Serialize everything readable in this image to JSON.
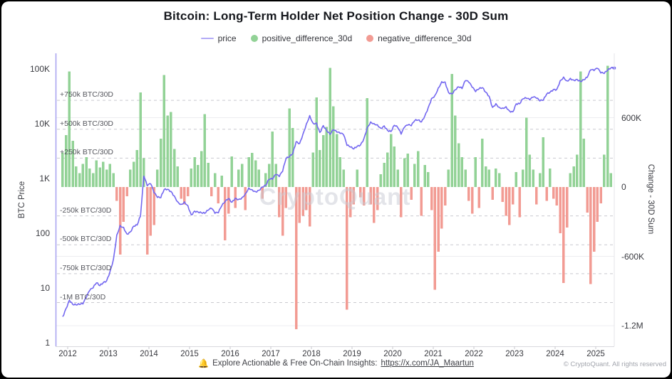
{
  "page": {
    "background": "#000000",
    "card_background": "#ffffff"
  },
  "header": {
    "title": "Bitcoin: Long-Term Holder Net Position Change - 30D Sum"
  },
  "legend": [
    {
      "label": "price",
      "type": "line",
      "color": "#b3abf7"
    },
    {
      "label": "positive_difference_30d",
      "type": "dot",
      "color": "#92d296"
    },
    {
      "label": "negative_difference_30d",
      "type": "dot",
      "color": "#f29b93"
    }
  ],
  "watermark": "CryptoQuant",
  "footer": {
    "bell_icon": "🔔",
    "text": "Explore Actionable & Free On-Chain Insights:",
    "link": "https://x.com/JA_Maartun",
    "copyright": "© CryptoQuant. All rights reserved"
  },
  "chart_data": {
    "type": "combo",
    "title": "Bitcoin: Long-Term Holder Net Position Change - 30D Sum",
    "subtitle": "",
    "grid": "dashed-guides-plus-light-solid-lines",
    "legend_position": "top-center",
    "colors": {
      "price_line": "#7367f0",
      "positive_bar": "#92d296",
      "negative_bar": "#f29b93",
      "axis_line": "#a6a0f0"
    },
    "left_axis": {
      "label": "BTC Price",
      "scale": "log",
      "ticks": [
        "100K",
        "10K",
        "1K",
        "100",
        "10",
        "1"
      ],
      "tick_values": [
        100000,
        10000,
        1000,
        100,
        10,
        1
      ]
    },
    "right_axis": {
      "label": "Change - 30D Sum",
      "scale": "linear",
      "ticks": [
        "600K",
        "0",
        "-600K",
        "-1.2M"
      ],
      "tick_values_k_btc": [
        600,
        0,
        -600,
        -1200
      ]
    },
    "x_axis": {
      "ticks": [
        "2012",
        "2013",
        "2014",
        "2015",
        "2016",
        "2017",
        "2018",
        "2019",
        "2020",
        "2021",
        "2022",
        "2023",
        "2024",
        "2025"
      ],
      "range": [
        "2011-11",
        "2025-06"
      ]
    },
    "guides": [
      {
        "label": "+750k BTC/30D",
        "value_k_btc": 750
      },
      {
        "label": "+500k BTC/30D",
        "value_k_btc": 500
      },
      {
        "label": "+250k BTC/30D",
        "value_k_btc": 250
      },
      {
        "label": "-250k BTC/30D",
        "value_k_btc": -250
      },
      {
        "label": "-500k BTC/30D",
        "value_k_btc": -500
      },
      {
        "label": "-750k BTC/30D",
        "value_k_btc": -750
      },
      {
        "label": "-1M BTC/30D",
        "value_k_btc": -1000
      }
    ],
    "series": {
      "resolution": "monthly",
      "start_month": "2011-11",
      "price_usd": [
        3.0,
        4.2,
        6.0,
        5.0,
        4.9,
        5.0,
        5.1,
        6.7,
        9.0,
        10.0,
        12.4,
        11.0,
        12.5,
        13.5,
        20,
        33,
        93,
        139,
        128,
        97,
        106,
        135,
        141,
        204,
        1100,
        732,
        800,
        550,
        450,
        445,
        630,
        635,
        580,
        480,
        375,
        338,
        375,
        320,
        217,
        254,
        244,
        236,
        230,
        263,
        284,
        230,
        236,
        314,
        377,
        430,
        368,
        437,
        416,
        448,
        531,
        673,
        624,
        575,
        610,
        700,
        745,
        963,
        970,
        1180,
        1080,
        1350,
        2300,
        2480,
        2870,
        4700,
        4360,
        6450,
        9900,
        14100,
        10200,
        10300,
        6930,
        9240,
        7490,
        6400,
        7730,
        7030,
        6630,
        6300,
        4020,
        3740,
        3460,
        3850,
        4100,
        5320,
        8560,
        10800,
        10100,
        9590,
        8290,
        9150,
        7560,
        7190,
        9350,
        8540,
        6440,
        8620,
        9450,
        9140,
        11350,
        11650,
        10780,
        13800,
        19700,
        28990,
        33100,
        45200,
        58800,
        57800,
        37300,
        35000,
        41600,
        47100,
        43800,
        61300,
        57000,
        46200,
        38500,
        43200,
        45500,
        37700,
        31800,
        19900,
        23300,
        20000,
        19400,
        20500,
        17200,
        16500,
        23100,
        23100,
        28500,
        29200,
        27200,
        30500,
        29200,
        26000,
        26900,
        34700,
        37700,
        42300,
        42600,
        61200,
        71300,
        60600,
        67500,
        62700,
        64600,
        59000,
        63300,
        70200,
        96400,
        93400,
        102400,
        84400,
        82500,
        94200,
        104600,
        104000
      ],
      "net_position_change_k_btc": [
        300,
        450,
        1000,
        400,
        180,
        120,
        200,
        260,
        160,
        120,
        230,
        170,
        220,
        150,
        200,
        120,
        -120,
        -585,
        -300,
        -80,
        150,
        220,
        320,
        820,
        250,
        -585,
        -420,
        -330,
        150,
        420,
        970,
        620,
        650,
        330,
        180,
        -100,
        -150,
        -80,
        160,
        260,
        190,
        310,
        630,
        210,
        -80,
        120,
        -140,
        100,
        -460,
        -230,
        265,
        -180,
        150,
        200,
        -200,
        260,
        295,
        230,
        150,
        -100,
        120,
        200,
        480,
        200,
        -260,
        -420,
        -180,
        680,
        510,
        -1230,
        -310,
        -250,
        -200,
        -340,
        300,
        775,
        320,
        450,
        520,
        1030,
        700,
        460,
        260,
        150,
        -1060,
        -260,
        -150,
        150,
        -90,
        -160,
        770,
        -150,
        -310,
        -200,
        110,
        210,
        300,
        460,
        350,
        150,
        -260,
        250,
        290,
        -110,
        200,
        310,
        -250,
        190,
        130,
        -200,
        -890,
        -560,
        -360,
        -160,
        150,
        980,
        620,
        380,
        260,
        150,
        -120,
        -230,
        260,
        -180,
        420,
        180,
        150,
        -110,
        160,
        120,
        -130,
        -250,
        -330,
        -150,
        130,
        -260,
        150,
        600,
        280,
        150,
        -150,
        120,
        430,
        -120,
        160,
        -100,
        -160,
        -400,
        -830,
        -350,
        120,
        180,
        280,
        1000,
        420,
        -220,
        -840,
        -560,
        -300,
        -140,
        280,
        1050,
        120,
        0
      ]
    }
  }
}
